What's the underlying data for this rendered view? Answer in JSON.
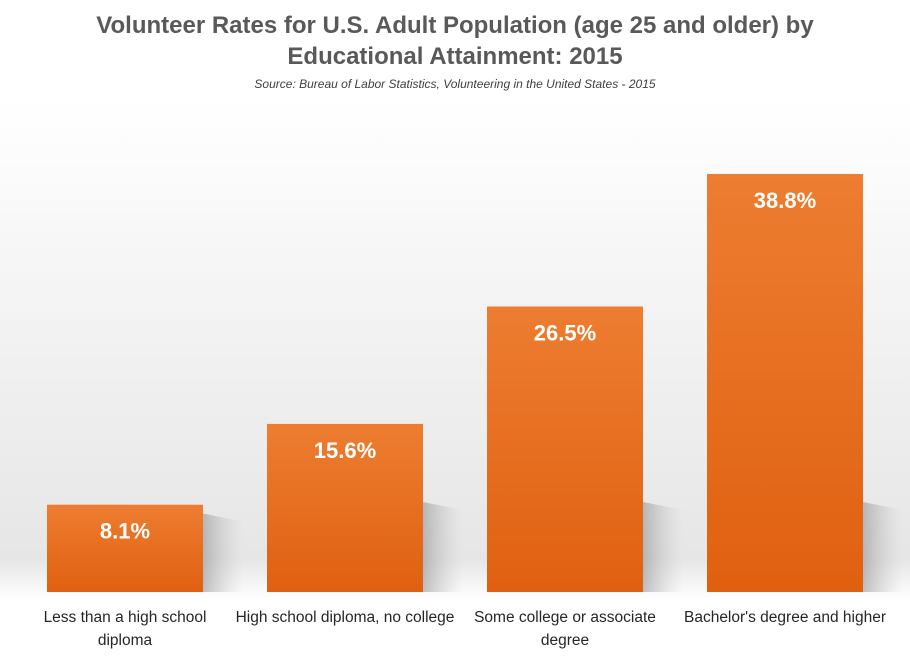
{
  "chart_data": {
    "type": "bar",
    "title": "Volunteer Rates for U.S. Adult Population (age 25 and older) by Educational Attainment: 2015",
    "title_lines": [
      "Volunteer Rates for U.S. Adult Population (age 25 and older) by",
      "Educational Attainment: 2015"
    ],
    "subtitle": "Source: Bureau of Labor Statistics, Volunteering in the United States - 2015",
    "categories": [
      "Less than a high school diploma",
      "High school diploma, no college",
      "Some college or associate degree",
      "Bachelor's degree and higher"
    ],
    "values": [
      8.1,
      15.6,
      26.5,
      38.8
    ],
    "data_labels": [
      "8.1%",
      "15.6%",
      "26.5%",
      "38.8%"
    ],
    "unit": "%",
    "ylim": [
      0,
      40
    ],
    "grid": false,
    "legend": "none",
    "colors": {
      "bar_top": "#ED7D31",
      "bar_bottom": "#E06010",
      "label": "#FFFFFF"
    }
  }
}
